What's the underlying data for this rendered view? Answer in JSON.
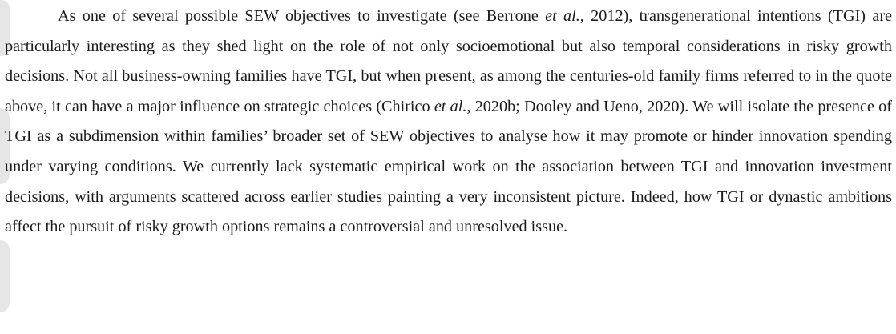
{
  "paragraph": {
    "seg1": "As one of several possible SEW objectives to investigate (see Berrone ",
    "etal1": "et al.",
    "seg2": ", 2012), transgenerational intentions (TGI) are particularly interesting as they shed light on the role of not only socioemotional but also temporal considerations in risky growth decisions. Not all business-owning families have TGI, but when present, as among the centuries-old family firms referred to in the quote above, it can have a major influence on strategic choices (Chirico ",
    "etal2": "et al.",
    "seg3": ", 2020b; Dooley and Ueno, 2020). We will isolate the presence of TGI as a subdimension within families’ broader set of SEW objectives to analyse how it may promote or hinder innovation spending under varying conditions. We currently lack systematic empirical work on the association between TGI and innovation investment decisions, with arguments scattered across earlier studies painting a very inconsistent picture. Indeed, how TGI or dynastic ambitions affect the pursuit of risky growth options remains a controversial and unresolved issue."
  }
}
